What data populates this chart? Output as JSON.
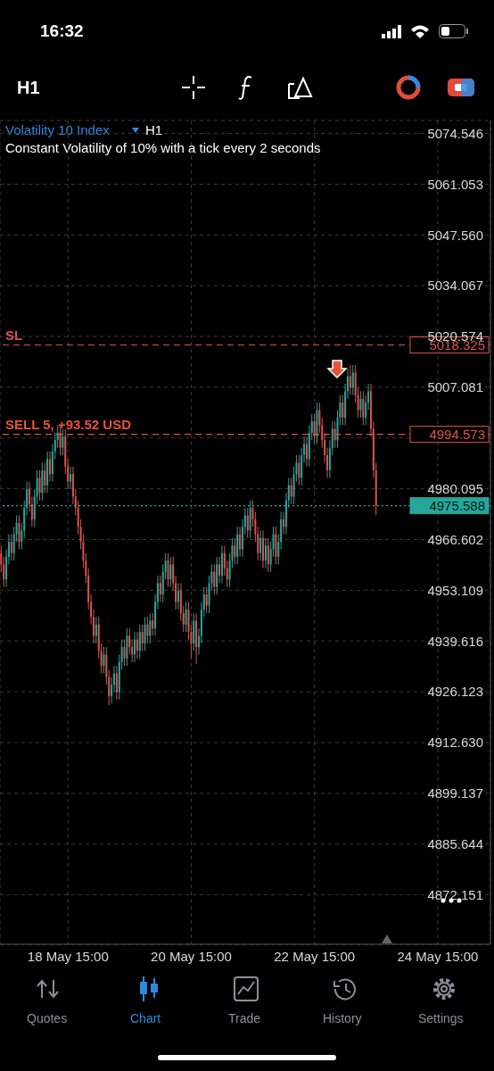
{
  "chart_data": {
    "type": "candlestick",
    "title": "Volatility 10 Index",
    "subtitle": "Constant Volatility of 10% with a tick every 2 seconds",
    "annotations": [
      "16:32",
      "H1",
      "H1",
      "Quotes",
      "Chart",
      "Trade",
      "History",
      "Settings",
      {
        "text": "5018.325",
        "y": 5018.325
      },
      {
        "text": "4994.573",
        "y": 4994.573
      },
      {
        "text": "4975.588",
        "y": 4975.588
      }
    ],
    "categories": [
      null,
      null,
      null,
      null,
      null,
      null,
      null,
      null,
      null,
      null,
      null,
      null,
      null,
      null,
      null,
      null,
      null,
      null,
      null,
      null,
      null,
      null,
      null,
      null,
      null,
      null,
      "18 May 15:00",
      null,
      null,
      null,
      null,
      null,
      null,
      null,
      null,
      null,
      null,
      null,
      null,
      null,
      null,
      null,
      null,
      null,
      null,
      null,
      null,
      null,
      null,
      null,
      null,
      null,
      null,
      null,
      null,
      null,
      null,
      null,
      null,
      null,
      null,
      null,
      null,
      null,
      null,
      null,
      null,
      null,
      null,
      null,
      null,
      null,
      null,
      null,
      "20 May 15:00",
      null,
      null,
      null,
      null,
      null,
      null,
      null,
      null,
      null,
      null,
      null,
      null,
      null,
      null,
      null,
      null,
      null,
      null,
      null,
      null,
      null,
      null,
      null,
      null,
      null,
      null,
      null,
      null,
      null,
      null,
      null,
      null,
      null,
      null,
      null,
      null,
      null,
      null,
      null,
      null,
      null,
      null,
      null,
      null,
      null,
      null,
      null,
      "22 May 15:00",
      null,
      null,
      null,
      null,
      null,
      null,
      null,
      null,
      null,
      null,
      null,
      null,
      null,
      null,
      null,
      null,
      null,
      null,
      null,
      null,
      null,
      null,
      null,
      null,
      null,
      null,
      null,
      null,
      null,
      null,
      null,
      null,
      null,
      null,
      null,
      null,
      null,
      null,
      null,
      null,
      null,
      null,
      null,
      null,
      null,
      null,
      null,
      "24 May 15:00",
      null,
      null,
      null,
      null,
      null,
      null,
      null,
      null,
      null,
      null,
      null,
      null,
      null,
      null,
      null,
      null,
      null,
      null,
      null,
      null
    ],
    "ohlc": [
      [
        4963,
        4965,
        4958,
        4960
      ],
      [
        4960,
        4962,
        4954,
        4956
      ],
      [
        4956,
        4964,
        4954,
        4962
      ],
      [
        4962,
        4968,
        4960,
        4966
      ],
      [
        4966,
        4968,
        4961,
        4963
      ],
      [
        4963,
        4970,
        4961,
        4968
      ],
      [
        4968,
        4973,
        4966,
        4971
      ],
      [
        4971,
        4973,
        4964,
        4966
      ],
      [
        4966,
        4971,
        4964,
        4969
      ],
      [
        4969,
        4977,
        4967,
        4975
      ],
      [
        4975,
        4982,
        4973,
        4980
      ],
      [
        4980,
        4982,
        4974,
        4976
      ],
      [
        4976,
        4978,
        4970,
        4972
      ],
      [
        4972,
        4980,
        4970,
        4978
      ],
      [
        4978,
        4985,
        4976,
        4983
      ],
      [
        4983,
        4985,
        4977,
        4979
      ],
      [
        4979,
        4987,
        4977,
        4985
      ],
      [
        4985,
        4987,
        4979,
        4981
      ],
      [
        4981,
        4990,
        4979,
        4988
      ],
      [
        4988,
        4990,
        4982,
        4984
      ],
      [
        4984,
        4992,
        4982,
        4990
      ],
      [
        4990,
        4995,
        4988,
        4993
      ],
      [
        4993,
        4997,
        4991,
        4995
      ],
      [
        4995,
        4997,
        4989,
        4991
      ],
      [
        4991,
        4996,
        4989,
        4994
      ],
      [
        4994,
        4996,
        4984,
        4986
      ],
      [
        4986,
        4988,
        4980,
        4982
      ],
      [
        4982,
        4986,
        4980,
        4984
      ],
      [
        4984,
        4986,
        4976,
        4978
      ],
      [
        4978,
        4980,
        4973,
        4975
      ],
      [
        4975,
        4977,
        4968,
        4970
      ],
      [
        4970,
        4972,
        4964,
        4966
      ],
      [
        4966,
        4968,
        4959,
        4961
      ],
      [
        4961,
        4963,
        4955,
        4957
      ],
      [
        4957,
        4959,
        4948,
        4950
      ],
      [
        4950,
        4952,
        4944,
        4946
      ],
      [
        4946,
        4948,
        4939,
        4941
      ],
      [
        4941,
        4946,
        4939,
        4944
      ],
      [
        4944,
        4946,
        4935,
        4937
      ],
      [
        4937,
        4939,
        4931,
        4933
      ],
      [
        4933,
        4938,
        4931,
        4936
      ],
      [
        4936,
        4938,
        4928,
        4930
      ],
      [
        4930,
        4932,
        4922.5,
        4925
      ],
      [
        4925,
        4930,
        4923,
        4928
      ],
      [
        4928,
        4933,
        4926,
        4931
      ],
      [
        4931,
        4933,
        4924,
        4926
      ],
      [
        4926,
        4936,
        4924,
        4934
      ],
      [
        4934,
        4940,
        4932,
        4938
      ],
      [
        4938,
        4940,
        4933,
        4935
      ],
      [
        4935,
        4943,
        4933,
        4941
      ],
      [
        4941,
        4943,
        4936,
        4938
      ],
      [
        4938,
        4940,
        4934,
        4936
      ],
      [
        4936,
        4942,
        4934,
        4940
      ],
      [
        4940,
        4942,
        4935,
        4937
      ],
      [
        4937,
        4944,
        4935,
        4942
      ],
      [
        4942,
        4944,
        4937,
        4939
      ],
      [
        4939,
        4946,
        4937,
        4944
      ],
      [
        4944,
        4946,
        4939,
        4941
      ],
      [
        4941,
        4947,
        4939,
        4945
      ],
      [
        4945,
        4947,
        4941,
        4943
      ],
      [
        4943,
        4952,
        4941,
        4950
      ],
      [
        4950,
        4957,
        4948,
        4955
      ],
      [
        4955,
        4957,
        4950,
        4952
      ],
      [
        4952,
        4960,
        4950,
        4958
      ],
      [
        4958,
        4963,
        4956,
        4961
      ],
      [
        4961,
        4963,
        4954,
        4956
      ],
      [
        4956,
        4962,
        4954,
        4960
      ],
      [
        4960,
        4962,
        4953,
        4955
      ],
      [
        4955,
        4957,
        4948,
        4950
      ],
      [
        4950,
        4955,
        4948,
        4953
      ],
      [
        4953,
        4955,
        4945,
        4947
      ],
      [
        4947,
        4949,
        4942,
        4944
      ],
      [
        4944,
        4950,
        4942,
        4948
      ],
      [
        4948,
        4950,
        4940,
        4942
      ],
      [
        4942,
        4944,
        4935,
        4939
      ],
      [
        4939,
        4947,
        4937,
        4945
      ],
      [
        4945,
        4947,
        4933.5,
        4938
      ],
      [
        4938,
        4943,
        4936,
        4941
      ],
      [
        4941,
        4950,
        4939,
        4948
      ],
      [
        4948,
        4954,
        4946,
        4952
      ],
      [
        4952,
        4954,
        4947,
        4949
      ],
      [
        4949,
        4957,
        4947,
        4955
      ],
      [
        4955,
        4960,
        4953,
        4958
      ],
      [
        4958,
        4960,
        4952,
        4954
      ],
      [
        4954,
        4962,
        4952,
        4960
      ],
      [
        4960,
        4962,
        4955,
        4957
      ],
      [
        4957,
        4965,
        4955,
        4963
      ],
      [
        4963,
        4965,
        4957,
        4959
      ],
      [
        4959,
        4961,
        4954,
        4956
      ],
      [
        4956,
        4963,
        4954,
        4961
      ],
      [
        4961,
        4967,
        4959,
        4965
      ],
      [
        4965,
        4967,
        4960,
        4962
      ],
      [
        4962,
        4970,
        4960,
        4968
      ],
      [
        4968,
        4970,
        4962,
        4964
      ],
      [
        4964,
        4972,
        4962,
        4970
      ],
      [
        4970,
        4975,
        4968,
        4973
      ],
      [
        4973,
        4975,
        4967,
        4969
      ],
      [
        4969,
        4977,
        4967,
        4975
      ],
      [
        4975,
        4977,
        4970,
        4972
      ],
      [
        4972,
        4974,
        4966,
        4968
      ],
      [
        4968,
        4970,
        4961,
        4963
      ],
      [
        4963,
        4969,
        4961,
        4967
      ],
      [
        4967,
        4969,
        4959,
        4961
      ],
      [
        4961,
        4967,
        4959,
        4965
      ],
      [
        4965,
        4967,
        4958,
        4960
      ],
      [
        4960,
        4966,
        4958,
        4964
      ],
      [
        4964,
        4970,
        4962,
        4968
      ],
      [
        4968,
        4970,
        4960,
        4962
      ],
      [
        4962,
        4968,
        4960,
        4966
      ],
      [
        4966,
        4974,
        4964,
        4972
      ],
      [
        4972,
        4974,
        4968,
        4970
      ],
      [
        4970,
        4979,
        4968,
        4977
      ],
      [
        4977,
        4983,
        4975,
        4981
      ],
      [
        4981,
        4983,
        4976,
        4978
      ],
      [
        4978,
        4986,
        4976,
        4984
      ],
      [
        4984,
        4989,
        4982,
        4987
      ],
      [
        4987,
        4989,
        4981,
        4983
      ],
      [
        4983,
        4991,
        4981,
        4989
      ],
      [
        4989,
        4994,
        4987,
        4992
      ],
      [
        4992,
        4994,
        4986,
        4988
      ],
      [
        4988,
        4997,
        4986,
        4995
      ],
      [
        4995,
        5000,
        4993,
        4998
      ],
      [
        4998,
        5000,
        4992,
        4994
      ],
      [
        4994,
        5003,
        4992,
        5001
      ],
      [
        5001,
        5003,
        4995,
        4997
      ],
      [
        4997,
        4999,
        4991,
        4993
      ],
      [
        4993,
        4995,
        4987,
        4989
      ],
      [
        4989,
        4991,
        4983,
        4985
      ],
      [
        4985,
        4993,
        4983,
        4991
      ],
      [
        4991,
        4998,
        4989,
        4996
      ],
      [
        4996,
        4998,
        4991,
        4993
      ],
      [
        4993,
        5001,
        4991,
        4999
      ],
      [
        4999,
        5005,
        4997,
        5003
      ],
      [
        5003,
        5005,
        4997,
        4999
      ],
      [
        4999,
        5008,
        4997,
        5006
      ],
      [
        5006,
        5012,
        5004,
        5010
      ],
      [
        5010,
        5013,
        5005,
        5007
      ],
      [
        5007,
        5013,
        5005,
        5011
      ],
      [
        5011,
        5013,
        5003,
        5005
      ],
      [
        5005,
        5007,
        4999,
        5001
      ],
      [
        5001,
        5006,
        4999,
        5004
      ],
      [
        5004,
        5006,
        4997,
        4999
      ],
      [
        4999,
        5005,
        4997,
        5003
      ],
      [
        5003,
        5008,
        5001,
        5006
      ],
      [
        5006,
        5008,
        4994,
        4996
      ],
      [
        4996,
        4998,
        4983,
        4985
      ],
      [
        4985,
        4987,
        4973,
        4975.6
      ],
      null,
      null,
      null,
      null,
      null,
      null,
      null,
      null,
      null,
      null,
      null,
      null,
      null,
      null,
      null,
      null,
      null,
      null,
      null,
      null,
      null,
      null,
      null,
      null,
      null,
      null,
      null,
      null,
      null,
      null,
      null,
      null,
      null,
      null,
      null,
      null,
      null,
      null,
      null,
      null,
      null,
      null,
      null,
      null
    ],
    "colors": [
      "#d9534f",
      "#d9534f",
      "#26a69a",
      "#26a69a",
      "#d9534f",
      "#26a69a",
      "#26a69a",
      "#d9534f",
      "#26a69a",
      "#26a69a",
      "#26a69a",
      "#d9534f",
      "#d9534f",
      "#26a69a",
      "#26a69a",
      "#d9534f",
      "#26a69a",
      "#d9534f",
      "#26a69a",
      "#d9534f",
      "#26a69a",
      "#26a69a",
      "#26a69a",
      "#d9534f",
      "#26a69a",
      "#d9534f",
      "#d9534f",
      "#26a69a",
      "#d9534f",
      "#d9534f",
      "#d9534f",
      "#d9534f",
      "#d9534f",
      "#d9534f",
      "#d9534f",
      "#d9534f",
      "#d9534f",
      "#26a69a",
      "#d9534f",
      "#d9534f",
      "#26a69a",
      "#d9534f",
      "#d9534f",
      "#26a69a",
      "#26a69a",
      "#d9534f",
      "#26a69a",
      "#26a69a",
      "#d9534f",
      "#26a69a",
      "#d9534f",
      "#d9534f",
      "#26a69a",
      "#d9534f",
      "#26a69a",
      "#d9534f",
      "#26a69a",
      "#d9534f",
      "#26a69a",
      "#d9534f",
      "#26a69a",
      "#26a69a",
      "#d9534f",
      "#26a69a",
      "#26a69a",
      "#d9534f",
      "#26a69a",
      "#d9534f",
      "#d9534f",
      "#26a69a",
      "#d9534f",
      "#d9534f",
      "#26a69a",
      "#d9534f",
      "#d9534f",
      "#26a69a",
      "#d9534f",
      "#26a69a",
      "#26a69a",
      "#26a69a",
      "#d9534f",
      "#26a69a",
      "#26a69a",
      "#d9534f",
      "#26a69a",
      "#d9534f",
      "#26a69a",
      "#d9534f",
      "#d9534f",
      "#26a69a",
      "#26a69a",
      "#d9534f",
      "#26a69a",
      "#d9534f",
      "#26a69a",
      "#26a69a",
      "#d9534f",
      "#26a69a",
      "#d9534f",
      "#d9534f",
      "#d9534f",
      "#26a69a",
      "#d9534f",
      "#26a69a",
      "#d9534f",
      "#26a69a",
      "#26a69a",
      "#d9534f",
      "#26a69a",
      "#26a69a",
      "#d9534f",
      "#26a69a",
      "#26a69a",
      "#d9534f",
      "#26a69a",
      "#26a69a",
      "#d9534f",
      "#26a69a",
      "#26a69a",
      "#d9534f",
      "#26a69a",
      "#26a69a",
      "#d9534f",
      "#26a69a",
      "#d9534f",
      "#d9534f",
      "#d9534f",
      "#d9534f",
      "#26a69a",
      "#26a69a",
      "#d9534f",
      "#26a69a",
      "#26a69a",
      "#d9534f",
      "#26a69a",
      "#26a69a",
      "#d9534f",
      "#26a69a",
      "#d9534f",
      "#d9534f",
      "#26a69a",
      "#d9534f",
      "#26a69a",
      "#26a69a",
      "#d9534f",
      "#d9534f",
      "#d9534f",
      null,
      null,
      null,
      null,
      null,
      null,
      null,
      null,
      null,
      null,
      null,
      null,
      null,
      null,
      null,
      null,
      null,
      null,
      null,
      null,
      null,
      null,
      null,
      null,
      null,
      null,
      null,
      null,
      null,
      null,
      null,
      null,
      null,
      null,
      null,
      null,
      null,
      null,
      null,
      null,
      null,
      null,
      null,
      null
    ],
    "ylim": [
      4859,
      5078
    ],
    "yticks": [
      5074.546,
      5061.053,
      {
        "value": 5047.56,
        "label": "5047.560"
      },
      5034.067,
      5020.574,
      5007.081,
      {
        "value": 4993.588,
        "label": null
      },
      4980.095,
      4966.602,
      4953.109,
      4939.616,
      4926.123,
      {
        "value": 4912.63,
        "label": "4912.630"
      },
      4899.137,
      4885.644,
      4872.151
    ],
    "grid": true,
    "ref_lines": [
      {
        "axis": "y",
        "value": 5018.325,
        "label": "SL",
        "color": "#d9534f",
        "line_style": "dashed"
      },
      {
        "axis": "y",
        "value": 4994.573,
        "label": "SELL 5, +93.52 USD",
        "color": "#e5533c",
        "line_style": "dashed"
      },
      {
        "axis": "y",
        "value": 4975.588,
        "color": "#26a69a",
        "line_style": "dotted"
      }
    ]
  }
}
